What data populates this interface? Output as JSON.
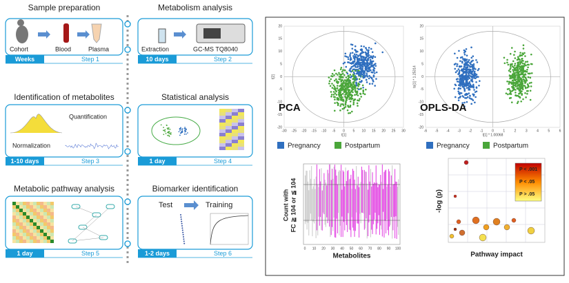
{
  "steps": [
    {
      "title": "Sample preparation",
      "duration": "Weeks",
      "step": "Step 1",
      "labels": [
        "Cohort",
        "Blood",
        "Plasma"
      ]
    },
    {
      "title": "Metabolism analysis",
      "duration": "10 days",
      "step": "Step 2",
      "labels": [
        "Extraction",
        "GC-MS TQ8040"
      ]
    },
    {
      "title": "Identification of metabolites",
      "duration": "1-10 days",
      "step": "Step 3",
      "labels": [
        "Quantification",
        "Normalization"
      ]
    },
    {
      "title": "Statistical analysis",
      "duration": "1 day",
      "step": "Step 4"
    },
    {
      "title": "Metabolic pathway analysis",
      "duration": "1 day",
      "step": "Step 5"
    },
    {
      "title": "Biomarker identification",
      "duration": "1-2 days",
      "step": "Step 6",
      "labels": [
        "Test",
        "Training"
      ]
    }
  ],
  "pca": {
    "title": "PCA",
    "x_label": "t[1]",
    "y_label": "t[2]",
    "xticks": [
      "-30",
      "-25",
      "-20",
      "-15",
      "-10",
      "-5",
      "0",
      "5",
      "10",
      "15",
      "20",
      "25",
      "30"
    ],
    "yticks": [
      "20",
      "15",
      "10",
      "5",
      "0",
      "-5",
      "-10",
      "-15",
      "-20"
    ]
  },
  "opls": {
    "title": "OPLS-DA",
    "x_label": "t[1] * 1.00068",
    "y_label": "to[1] * 1.25314",
    "xticks": [
      "-6",
      "-5",
      "-4",
      "-3",
      "-2",
      "-1",
      "0",
      "1",
      "2",
      "3",
      "4",
      "5",
      "6"
    ],
    "yticks": [
      "20",
      "15",
      "10",
      "5",
      "0",
      "-5",
      "-10",
      "-15",
      "-20"
    ]
  },
  "legend": [
    {
      "name": "Pregnancy",
      "color": "#2f6fbf"
    },
    {
      "name": "Postpartum",
      "color": "#4aa63a"
    }
  ],
  "bars": {
    "y_label": [
      "Count with",
      "FC ≧ 104 or ≦ 104"
    ],
    "x_label": "Metabolites",
    "xticks": [
      "0",
      "10",
      "20",
      "30",
      "40",
      "50",
      "60",
      "70",
      "80",
      "90",
      "100"
    ]
  },
  "bubble": {
    "y_label": "-log (p)",
    "x_label": "Pathway impact",
    "legend": [
      "P < .001",
      "P < .05",
      "P > .05"
    ]
  }
}
